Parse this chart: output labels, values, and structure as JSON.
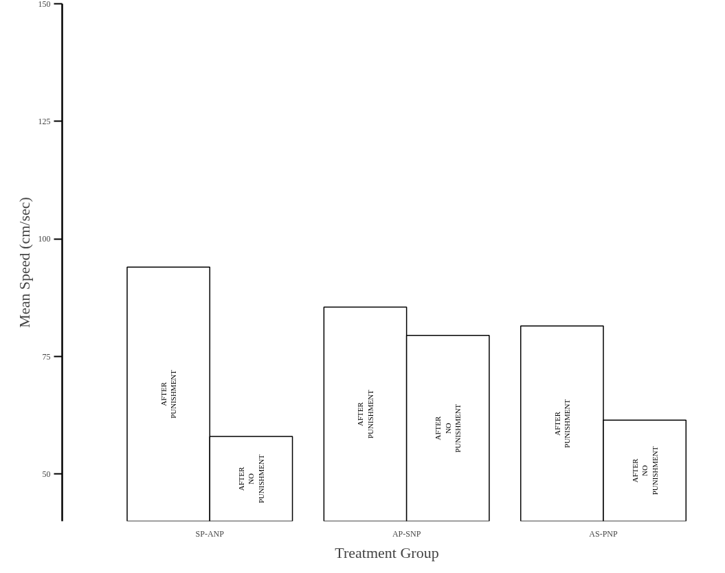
{
  "chart_data": {
    "type": "bar",
    "xlabel": "Treatment Group",
    "ylabel": "Mean Speed (cm/sec)",
    "categories": [
      "SP-ANP",
      "AP-SNP",
      "AS-PNP"
    ],
    "series": [
      {
        "name": "AFTER PUNISHMENT",
        "color": "#ffffff",
        "values": [
          94,
          85.5,
          81.5
        ]
      },
      {
        "name": "AFTER NO PUNISHMENT",
        "color": "#ffffff",
        "values": [
          58,
          79.5,
          61.5
        ]
      }
    ],
    "ylim": [
      40,
      150
    ],
    "yticks": [
      50,
      75,
      100,
      125,
      150
    ],
    "grid": false
  }
}
